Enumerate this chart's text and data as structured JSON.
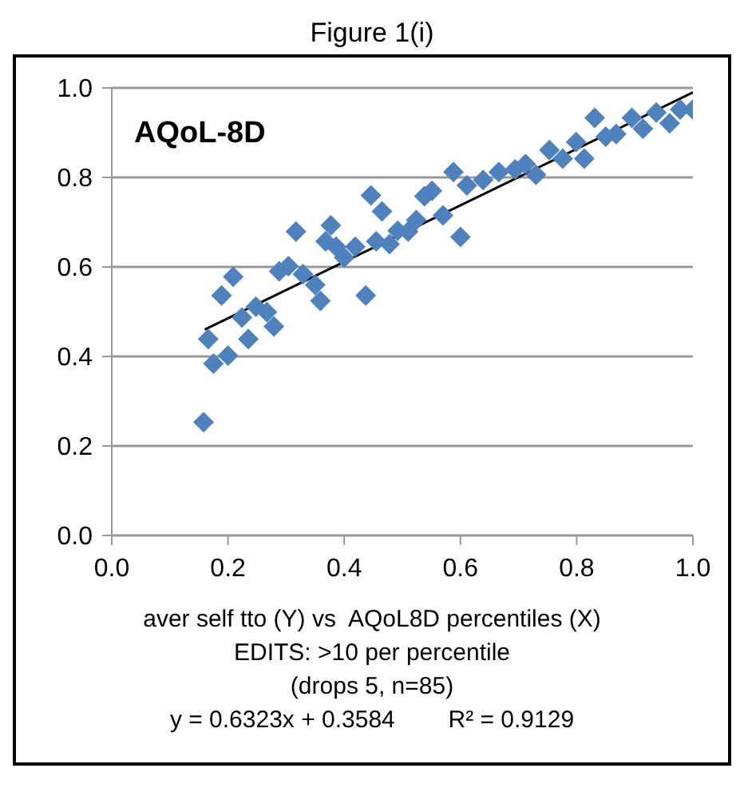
{
  "chart_data": {
    "type": "scatter",
    "title": "Figure 1(i)",
    "annotations": [
      "AQoL-8D",
      "aver self tto (Y) vs  AQoL8D percentiles (X)",
      "EDITS: >10 per percentile",
      "(drops 5, n=85)",
      "y = 0.6323x + 0.3584        R² = 0.9129"
    ],
    "xlim": [
      0,
      1
    ],
    "xticks": [
      {
        "value": 0,
        "label": "0.0"
      },
      0.2,
      0.4,
      0.6,
      0.8,
      {
        "value": 1,
        "label": "1.0"
      }
    ],
    "ylim": [
      0,
      1
    ],
    "yticks": [
      {
        "value": 0,
        "label": "0.0"
      },
      0.2,
      0.4,
      0.6,
      0.8,
      {
        "value": 1,
        "label": "1.0"
      }
    ],
    "grid": "y",
    "marker": "diamond",
    "legend": false,
    "series": [
      {
        "color": "#4f81bd",
        "x": [
          0.158,
          0.166,
          0.175,
          0.2,
          0.189,
          0.209,
          0.224,
          0.235,
          0.248,
          0.267,
          0.279,
          0.288,
          0.304,
          0.317,
          0.329,
          0.35,
          0.359,
          0.368,
          0.377,
          0.386,
          0.4,
          0.419,
          0.437,
          0.446,
          0.465,
          0.455,
          0.478,
          0.492,
          0.51,
          0.524,
          0.538,
          0.551,
          0.57,
          0.588,
          0.6,
          0.611,
          0.639,
          0.666,
          0.694,
          0.712,
          0.73,
          0.753,
          0.776,
          0.799,
          0.813,
          0.831,
          0.85,
          0.868,
          0.895,
          0.914,
          0.937,
          0.96,
          0.978,
          1.0
        ],
        "values": [
          0.253,
          0.439,
          0.384,
          0.402,
          0.536,
          0.578,
          0.487,
          0.439,
          0.511,
          0.499,
          0.467,
          0.59,
          0.602,
          0.679,
          0.584,
          0.56,
          0.524,
          0.657,
          0.693,
          0.645,
          0.621,
          0.645,
          0.536,
          0.76,
          0.724,
          0.657,
          0.651,
          0.681,
          0.679,
          0.705,
          0.758,
          0.77,
          0.715,
          0.812,
          0.667,
          0.782,
          0.794,
          0.812,
          0.818,
          0.83,
          0.806,
          0.861,
          0.842,
          0.879,
          0.842,
          0.933,
          0.891,
          0.897,
          0.933,
          0.909,
          0.945,
          0.921,
          0.952,
          0.952
        ]
      },
      {
        "type": "line",
        "marker": "none",
        "color": "#000000",
        "x": [
          0.16,
          1.0
        ],
        "values": [
          0.46,
          0.99
        ]
      }
    ]
  }
}
